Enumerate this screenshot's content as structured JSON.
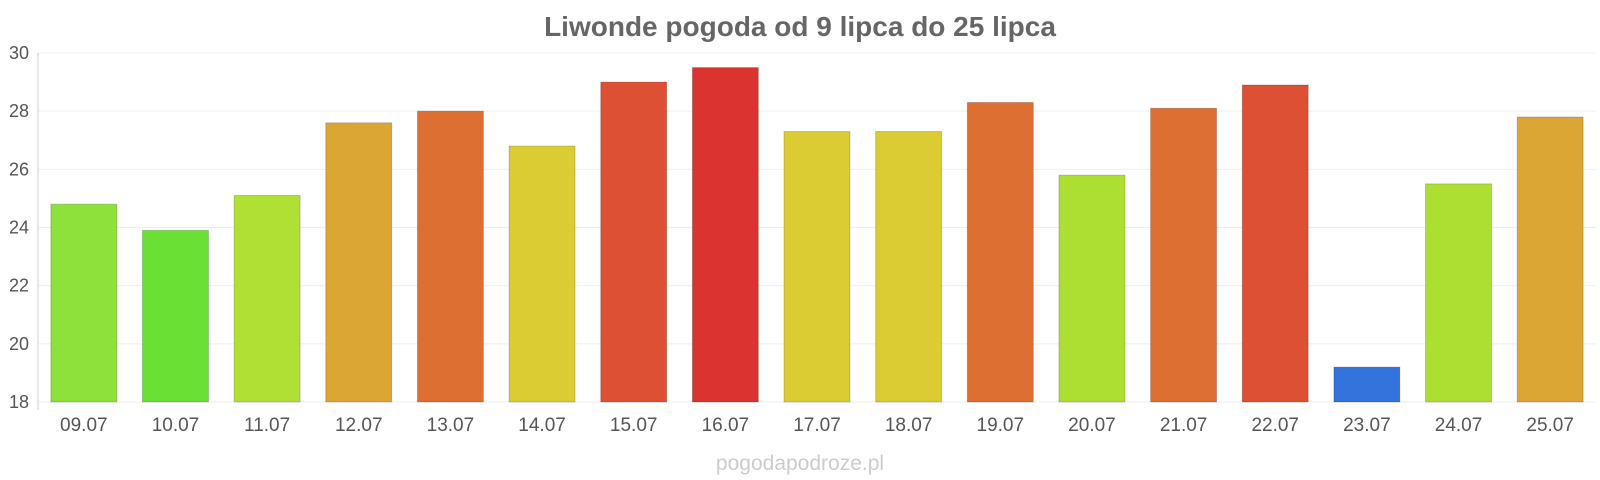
{
  "chart_data": {
    "type": "bar",
    "title": "Liwonde pogoda od 9 lipca do 25 lipca",
    "xlabel": "",
    "ylabel": "",
    "ylim": [
      18,
      30
    ],
    "yticks": [
      18,
      20,
      22,
      24,
      26,
      28,
      30
    ],
    "grid": true,
    "categories": [
      "09.07",
      "10.07",
      "11.07",
      "12.07",
      "13.07",
      "14.07",
      "15.07",
      "16.07",
      "17.07",
      "18.07",
      "19.07",
      "20.07",
      "21.07",
      "22.07",
      "23.07",
      "24.07",
      "25.07"
    ],
    "values": [
      24.8,
      23.9,
      25.1,
      27.6,
      28.0,
      26.8,
      29.0,
      29.5,
      27.3,
      27.3,
      28.3,
      25.8,
      28.1,
      28.9,
      19.2,
      25.5,
      27.8
    ],
    "colors": [
      "#8ee03a",
      "#6adf34",
      "#b0e033",
      "#dca634",
      "#de6f33",
      "#dccc33",
      "#dd5033",
      "#db3430",
      "#dccc33",
      "#dccc33",
      "#de6f33",
      "#addf33",
      "#de6f33",
      "#dd5033",
      "#3273dc",
      "#addf33",
      "#dca634"
    ]
  },
  "watermark": "pogodapodroze.pl"
}
